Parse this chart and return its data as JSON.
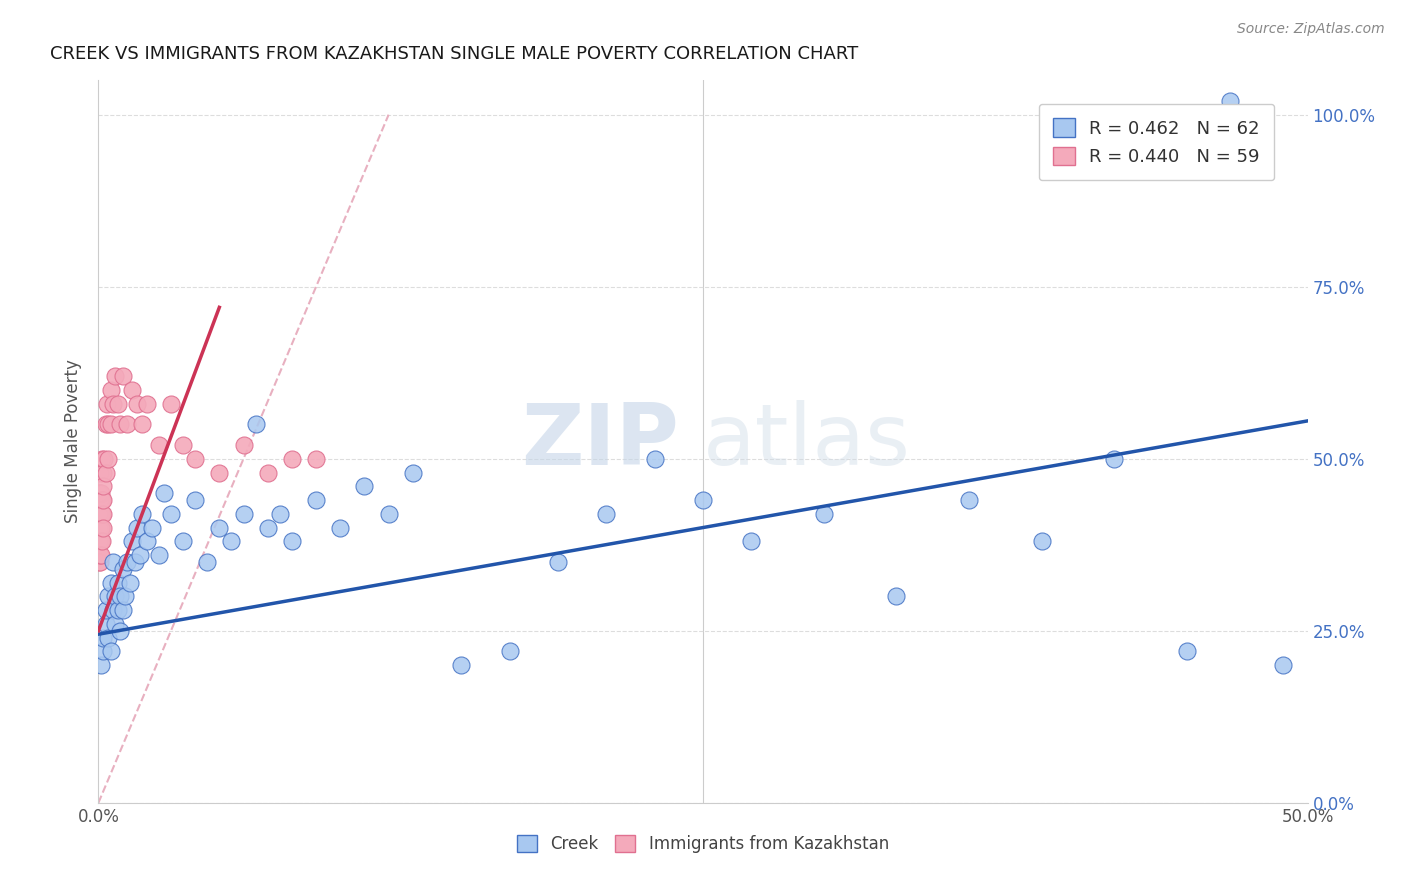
{
  "title": "CREEK VS IMMIGRANTS FROM KAZAKHSTAN SINGLE MALE POVERTY CORRELATION CHART",
  "source_text": "Source: ZipAtlas.com",
  "ylabel": "Single Male Poverty",
  "xlim": [
    0.0,
    0.5
  ],
  "ylim": [
    0.0,
    1.05
  ],
  "creek_color": "#A8C8F0",
  "kazakh_color": "#F4AABB",
  "creek_edge_color": "#4472C4",
  "kazakh_edge_color": "#E07090",
  "creek_trend_color": "#2255AA",
  "kazakh_trend_color": "#CC3355",
  "ref_line_color": "#E8B0C0",
  "creek_R": 0.462,
  "creek_N": 62,
  "kazakh_R": 0.44,
  "kazakh_N": 59,
  "legend_label_creek": "Creek",
  "legend_label_kazakh": "Immigrants from Kazakhstan",
  "watermark_zip": "ZIP",
  "watermark_atlas": "atlas",
  "background_color": "#ffffff",
  "grid_color": "#dddddd",
  "title_color": "#1a1a1a",
  "source_color": "#888888",
  "right_tick_color": "#4472C4",
  "creek_x": [
    0.001,
    0.002,
    0.002,
    0.003,
    0.003,
    0.004,
    0.004,
    0.005,
    0.005,
    0.006,
    0.006,
    0.007,
    0.007,
    0.008,
    0.008,
    0.009,
    0.009,
    0.01,
    0.01,
    0.011,
    0.012,
    0.013,
    0.014,
    0.015,
    0.016,
    0.017,
    0.018,
    0.02,
    0.022,
    0.025,
    0.027,
    0.03,
    0.035,
    0.04,
    0.045,
    0.05,
    0.055,
    0.06,
    0.065,
    0.07,
    0.075,
    0.08,
    0.09,
    0.1,
    0.11,
    0.12,
    0.13,
    0.15,
    0.17,
    0.19,
    0.21,
    0.23,
    0.25,
    0.27,
    0.3,
    0.33,
    0.36,
    0.39,
    0.42,
    0.45,
    0.468,
    0.49
  ],
  "creek_y": [
    0.2,
    0.22,
    0.24,
    0.26,
    0.28,
    0.24,
    0.3,
    0.22,
    0.32,
    0.28,
    0.35,
    0.26,
    0.3,
    0.28,
    0.32,
    0.25,
    0.3,
    0.28,
    0.34,
    0.3,
    0.35,
    0.32,
    0.38,
    0.35,
    0.4,
    0.36,
    0.42,
    0.38,
    0.4,
    0.36,
    0.45,
    0.42,
    0.38,
    0.44,
    0.35,
    0.4,
    0.38,
    0.42,
    0.55,
    0.4,
    0.42,
    0.38,
    0.44,
    0.4,
    0.46,
    0.42,
    0.48,
    0.2,
    0.22,
    0.35,
    0.42,
    0.5,
    0.44,
    0.38,
    0.42,
    0.3,
    0.44,
    0.38,
    0.5,
    0.22,
    1.02,
    0.2
  ],
  "kazakh_x": [
    0.0002,
    0.0003,
    0.0003,
    0.0004,
    0.0004,
    0.0005,
    0.0005,
    0.0005,
    0.0006,
    0.0006,
    0.0007,
    0.0007,
    0.0008,
    0.0008,
    0.0008,
    0.0009,
    0.0009,
    0.001,
    0.001,
    0.001,
    0.0012,
    0.0012,
    0.0013,
    0.0014,
    0.0015,
    0.0015,
    0.0016,
    0.0017,
    0.0018,
    0.002,
    0.002,
    0.002,
    0.0025,
    0.003,
    0.003,
    0.0035,
    0.004,
    0.004,
    0.005,
    0.005,
    0.006,
    0.007,
    0.008,
    0.009,
    0.01,
    0.012,
    0.014,
    0.016,
    0.018,
    0.02,
    0.025,
    0.03,
    0.035,
    0.04,
    0.05,
    0.06,
    0.07,
    0.08,
    0.09
  ],
  "kazakh_y": [
    0.38,
    0.35,
    0.42,
    0.4,
    0.45,
    0.38,
    0.42,
    0.35,
    0.44,
    0.4,
    0.38,
    0.45,
    0.42,
    0.36,
    0.48,
    0.4,
    0.44,
    0.38,
    0.45,
    0.42,
    0.4,
    0.36,
    0.44,
    0.42,
    0.38,
    0.5,
    0.44,
    0.42,
    0.48,
    0.44,
    0.4,
    0.46,
    0.5,
    0.55,
    0.48,
    0.58,
    0.55,
    0.5,
    0.6,
    0.55,
    0.58,
    0.62,
    0.58,
    0.55,
    0.62,
    0.55,
    0.6,
    0.58,
    0.55,
    0.58,
    0.52,
    0.58,
    0.52,
    0.5,
    0.48,
    0.52,
    0.48,
    0.5,
    0.5
  ]
}
